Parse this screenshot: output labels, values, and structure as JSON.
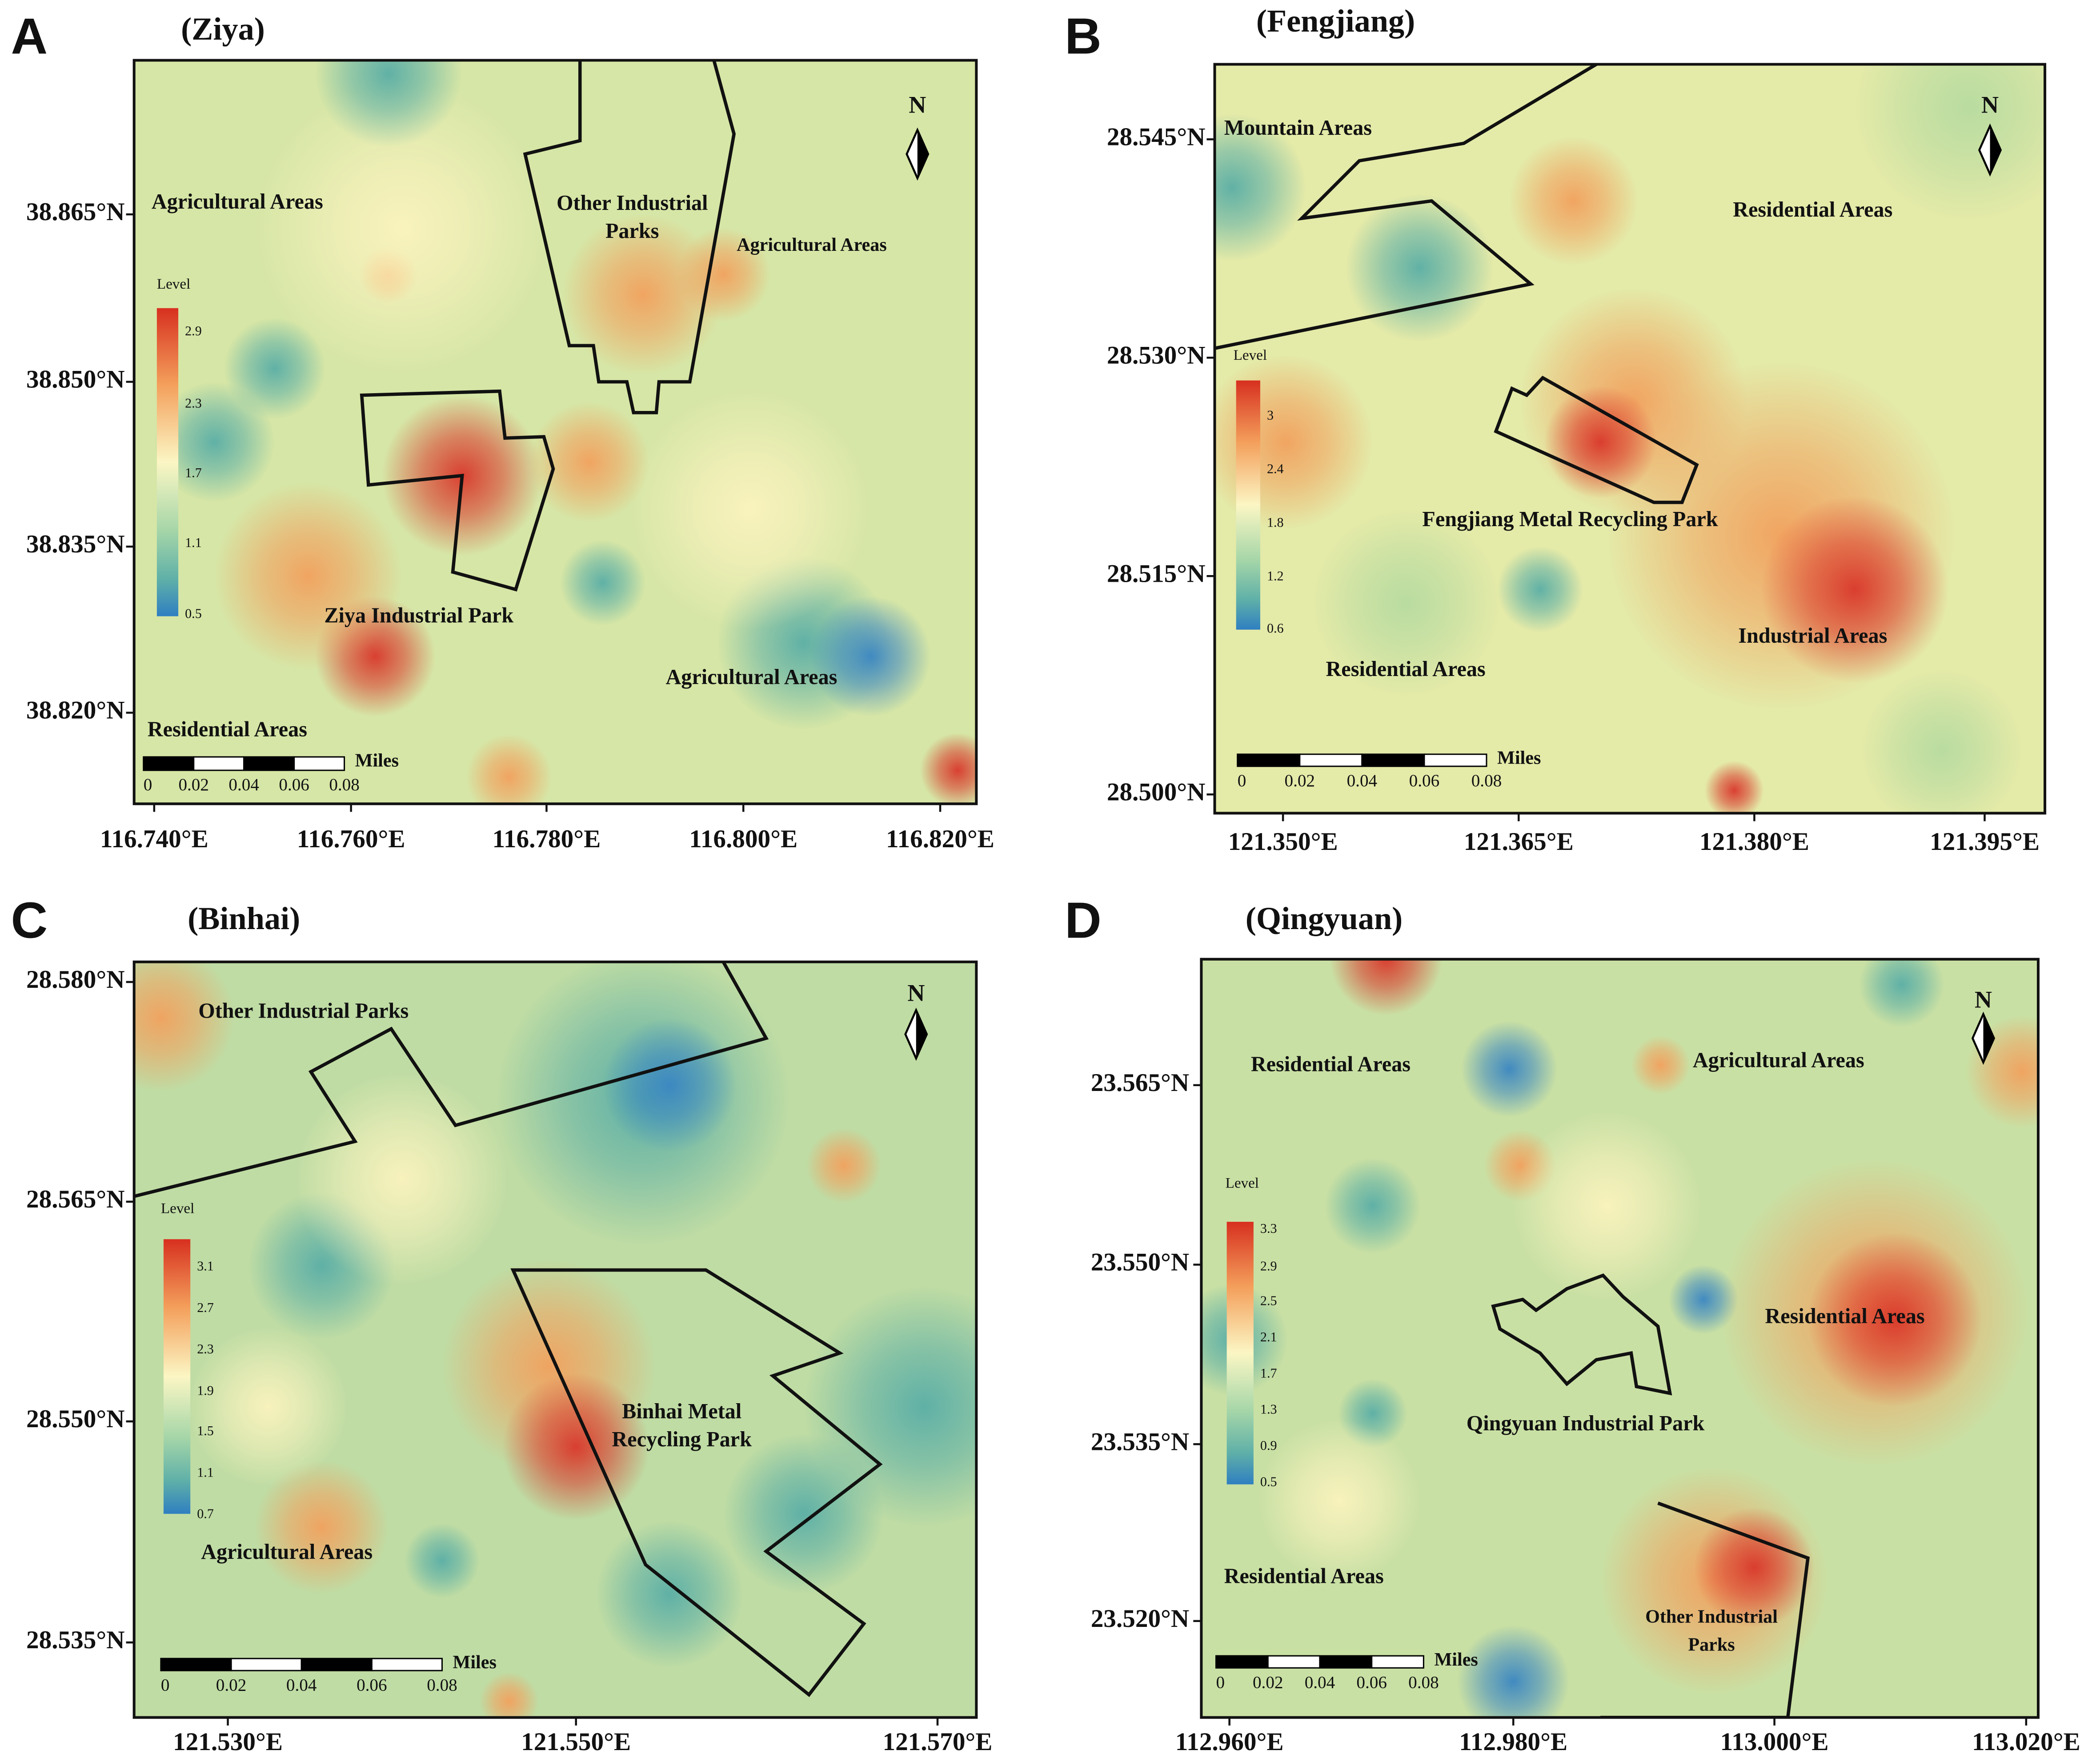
{
  "panels": [
    {
      "letter": "A",
      "title": "(Ziya)",
      "north": "N",
      "areas": [
        [
          "Agricultural Areas"
        ],
        [
          "Other Industrial",
          "Parks"
        ],
        [
          "Agricultural Areas"
        ],
        [
          "Ziya Industrial Park"
        ],
        [
          "Agricultural Areas"
        ],
        [
          "Residential Areas"
        ]
      ],
      "legend": {
        "title": "Level",
        "levels": [
          2.9,
          2.3,
          1.7,
          1.1,
          0.5
        ]
      },
      "scale": {
        "unit": "Miles",
        "ticks": [
          0,
          0.02,
          0.04,
          0.06,
          0.08
        ]
      },
      "lat_ticks": [
        "38.865°N",
        "38.850°N",
        "38.835°N",
        "38.820°N"
      ],
      "lon_ticks": [
        "116.740°E",
        "116.760°E",
        "116.780°E",
        "116.800°E",
        "116.820°E"
      ]
    },
    {
      "letter": "B",
      "title": "(Fengjiang)",
      "north": "N",
      "areas": [
        [
          "Mountain Areas"
        ],
        [
          "Residential Areas"
        ],
        [
          "Fengjiang Metal Recycling Park"
        ],
        [
          "Industrial Areas"
        ],
        [
          "Residential Areas"
        ]
      ],
      "legend": {
        "title": "Level",
        "levels": [
          3,
          2.4,
          1.8,
          1.2,
          0.6
        ]
      },
      "scale": {
        "unit": "Miles",
        "ticks": [
          0,
          0.02,
          0.04,
          0.06,
          0.08
        ]
      },
      "lat_ticks": [
        "28.545°N",
        "28.530°N",
        "28.515°N",
        "28.500°N"
      ],
      "lon_ticks": [
        "121.350°E",
        "121.365°E",
        "121.380°E",
        "121.395°E"
      ]
    },
    {
      "letter": "C",
      "title": "(Binhai)",
      "north": "N",
      "areas": [
        [
          "Other Industrial Parks"
        ],
        [
          "Binhai Metal",
          "Recycling Park"
        ],
        [
          "Agricultural Areas"
        ]
      ],
      "legend": {
        "title": "Level",
        "levels": [
          3.1,
          2.7,
          2.3,
          1.9,
          1.5,
          1.1,
          0.7
        ]
      },
      "scale": {
        "unit": "Miles",
        "ticks": [
          0,
          0.02,
          0.04,
          0.06,
          0.08
        ]
      },
      "lat_ticks": [
        "28.580°N",
        "28.565°N",
        "28.550°N",
        "28.535°N"
      ],
      "lon_ticks": [
        "121.530°E",
        "121.550°E",
        "121.570°E"
      ]
    },
    {
      "letter": "D",
      "title": "(Qingyuan)",
      "north": "N",
      "areas": [
        [
          "Residential Areas"
        ],
        [
          "Agricultural Areas"
        ],
        [
          "Residential Areas"
        ],
        [
          "Qingyuan Industrial Park"
        ],
        [
          "Residential Areas"
        ],
        [
          "Other Industrial",
          "Parks"
        ]
      ],
      "legend": {
        "title": "Level",
        "levels": [
          3.3,
          2.9,
          2.5,
          2.1,
          1.7,
          1.3,
          0.9,
          0.5
        ]
      },
      "scale": {
        "unit": "Miles",
        "ticks": [
          0,
          0.02,
          0.04,
          0.06,
          0.08
        ]
      },
      "lat_ticks": [
        "23.565°N",
        "23.550°N",
        "23.535°N",
        "23.520°N"
      ],
      "lon_ticks": [
        "112.960°E",
        "112.980°E",
        "113.000°E",
        "113.020°E"
      ]
    }
  ]
}
